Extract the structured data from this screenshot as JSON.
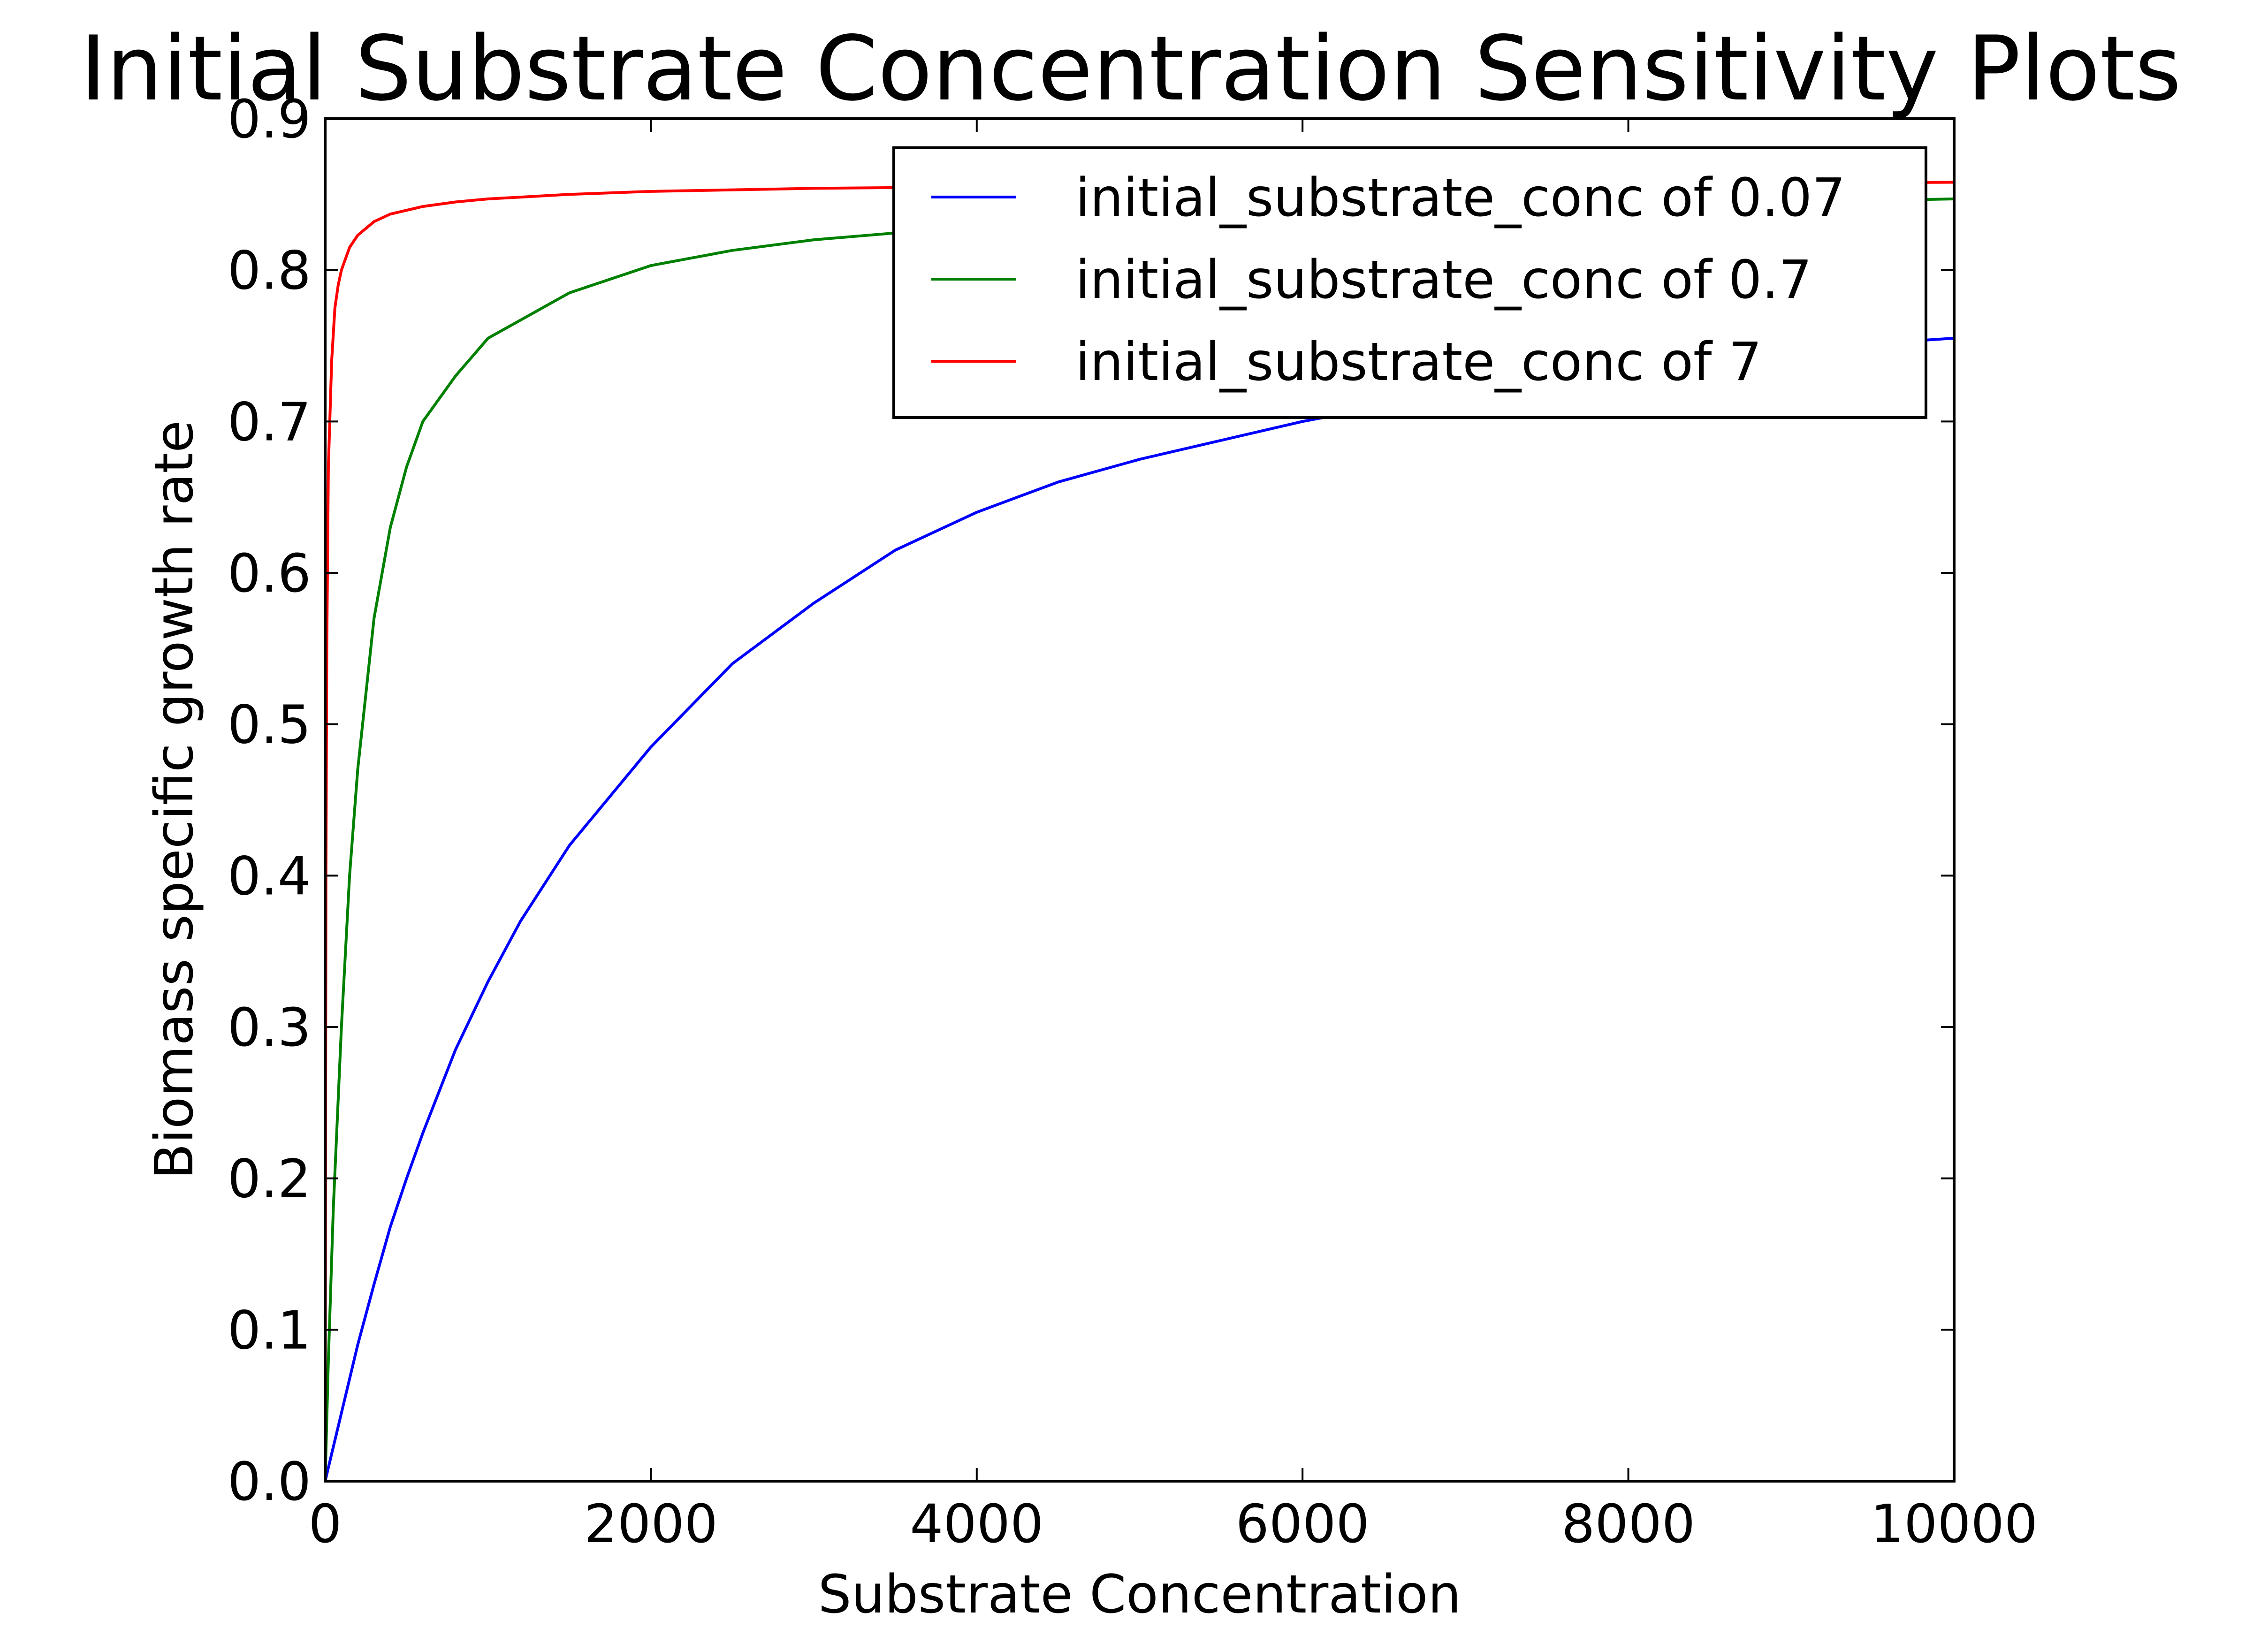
{
  "chart_data": {
    "type": "line",
    "title": "Initial Substrate Concentration Sensitivity Plots",
    "xlabel": "Substrate Concentration",
    "ylabel": "Biomass specific growth rate",
    "xlim": [
      0,
      10000
    ],
    "ylim": [
      0.0,
      0.9
    ],
    "xticks": [
      0,
      2000,
      4000,
      6000,
      8000,
      10000
    ],
    "xtick_labels": [
      "0",
      "2000",
      "4000",
      "6000",
      "8000",
      "10000"
    ],
    "yticks": [
      0.0,
      0.1,
      0.2,
      0.3,
      0.4,
      0.5,
      0.6,
      0.7,
      0.8,
      0.9
    ],
    "ytick_labels": [
      "0.0",
      "0.1",
      "0.2",
      "0.3",
      "0.4",
      "0.5",
      "0.6",
      "0.7",
      "0.8",
      "0.9"
    ],
    "grid": false,
    "legend_position": "top-right",
    "series": [
      {
        "name": "initial_substrate_conc of 0.07",
        "color": "#0000ff",
        "x": [
          0,
          100,
          200,
          300,
          400,
          500,
          600,
          800,
          1000,
          1200,
          1500,
          2000,
          2500,
          3000,
          3500,
          4000,
          4500,
          5000,
          6000,
          7000,
          8000,
          9000,
          10000
        ],
        "y": [
          0.0,
          0.045,
          0.09,
          0.13,
          0.168,
          0.2,
          0.23,
          0.285,
          0.33,
          0.37,
          0.42,
          0.485,
          0.54,
          0.58,
          0.615,
          0.64,
          0.66,
          0.675,
          0.7,
          0.72,
          0.735,
          0.748,
          0.755
        ]
      },
      {
        "name": "initial_substrate_conc of 0.7",
        "color": "#008000",
        "x": [
          0,
          20,
          50,
          100,
          150,
          200,
          300,
          400,
          500,
          600,
          800,
          1000,
          1500,
          2000,
          2500,
          3000,
          4000,
          5000,
          6000,
          7000,
          8000,
          9000,
          10000
        ],
        "y": [
          0.0,
          0.08,
          0.18,
          0.3,
          0.4,
          0.47,
          0.57,
          0.63,
          0.67,
          0.7,
          0.73,
          0.755,
          0.785,
          0.803,
          0.813,
          0.82,
          0.829,
          0.834,
          0.838,
          0.841,
          0.843,
          0.845,
          0.847
        ]
      },
      {
        "name": "initial_substrate_conc of 7",
        "color": "#ff0000",
        "x": [
          0,
          5,
          10,
          20,
          40,
          60,
          80,
          100,
          150,
          200,
          300,
          400,
          600,
          800,
          1000,
          1500,
          2000,
          3000,
          4000,
          6000,
          8000,
          10000
        ],
        "y": [
          0.0,
          0.4,
          0.55,
          0.67,
          0.74,
          0.775,
          0.79,
          0.8,
          0.815,
          0.823,
          0.832,
          0.837,
          0.842,
          0.845,
          0.847,
          0.85,
          0.852,
          0.854,
          0.855,
          0.856,
          0.857,
          0.858
        ]
      }
    ]
  }
}
